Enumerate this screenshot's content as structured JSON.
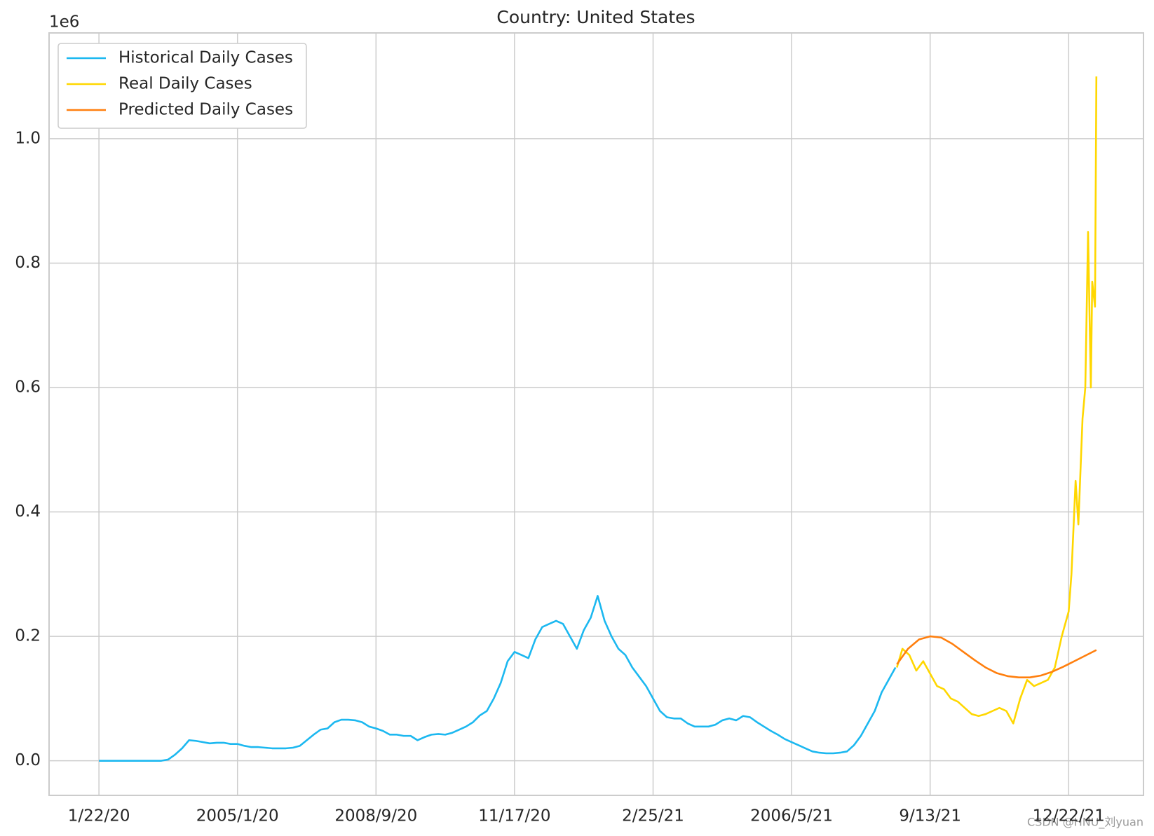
{
  "chart_data": {
    "type": "line",
    "title": "Country: United States",
    "y_multiplier_label": "1e6",
    "watermark": "CSDN @HNU_刘yuan",
    "xlim": [
      -36,
      754
    ],
    "xticks": [
      {
        "value": 0,
        "label": "1/22/20"
      },
      {
        "value": 100,
        "label": "2005/1/20"
      },
      {
        "value": 200,
        "label": "2008/9/20"
      },
      {
        "value": 300,
        "label": "11/17/20"
      },
      {
        "value": 400,
        "label": "2/25/21"
      },
      {
        "value": 500,
        "label": "2006/5/21"
      },
      {
        "value": 600,
        "label": "9/13/21"
      },
      {
        "value": 700,
        "label": "12/22/21"
      }
    ],
    "ylim": [
      -55600,
      1170000
    ],
    "yticks": [
      {
        "value": 0,
        "label": "0.0"
      },
      {
        "value": 200000,
        "label": "0.2"
      },
      {
        "value": 400000,
        "label": "0.4"
      },
      {
        "value": 600000,
        "label": "0.6"
      },
      {
        "value": 800000,
        "label": "0.8"
      },
      {
        "value": 1000000,
        "label": "1.0"
      }
    ],
    "grid": true,
    "legend": "upper left",
    "series": [
      {
        "name": "Historical Daily Cases",
        "color": "#1cb8f0",
        "x": [
          0,
          5,
          10,
          15,
          20,
          25,
          30,
          35,
          40,
          45,
          50,
          55,
          60,
          65,
          70,
          75,
          80,
          85,
          90,
          95,
          100,
          105,
          110,
          115,
          120,
          125,
          130,
          135,
          140,
          145,
          150,
          155,
          160,
          165,
          170,
          175,
          180,
          185,
          190,
          195,
          200,
          205,
          210,
          215,
          220,
          225,
          230,
          235,
          240,
          245,
          250,
          255,
          260,
          265,
          270,
          275,
          280,
          285,
          290,
          295,
          300,
          305,
          310,
          315,
          320,
          325,
          330,
          335,
          340,
          345,
          350,
          355,
          360,
          365,
          370,
          375,
          380,
          385,
          390,
          395,
          400,
          405,
          410,
          415,
          420,
          425,
          430,
          435,
          440,
          445,
          450,
          455,
          460,
          465,
          470,
          475,
          480,
          485,
          490,
          495,
          500,
          505,
          510,
          515,
          520,
          525,
          530,
          535,
          540,
          545,
          550,
          555,
          560,
          565,
          570,
          575
        ],
        "values": [
          0,
          0,
          0,
          0,
          0,
          0,
          0,
          0,
          0,
          0,
          2000,
          10000,
          20000,
          33000,
          32000,
          30000,
          28000,
          29000,
          29000,
          27000,
          27000,
          24000,
          22000,
          22000,
          21000,
          20000,
          20000,
          20000,
          21000,
          24000,
          33000,
          42000,
          50000,
          52000,
          62000,
          66000,
          66000,
          65000,
          62000,
          55000,
          52000,
          48000,
          42000,
          42000,
          40000,
          40000,
          33000,
          38000,
          42000,
          43000,
          42000,
          45000,
          50000,
          55000,
          62000,
          73000,
          80000,
          100000,
          125000,
          160000,
          175000,
          170000,
          165000,
          195000,
          215000,
          220000,
          225000,
          220000,
          200000,
          180000,
          210000,
          230000,
          265000,
          225000,
          200000,
          180000,
          170000,
          150000,
          135000,
          120000,
          100000,
          80000,
          70000,
          68000,
          68000,
          60000,
          55000,
          55000,
          55000,
          58000,
          65000,
          68000,
          65000,
          72000,
          70000,
          62000,
          55000,
          48000,
          42000,
          35000,
          30000,
          25000,
          20000,
          15000,
          13000,
          12000,
          12000,
          13000,
          15000,
          25000,
          40000,
          60000,
          80000,
          110000,
          130000,
          150000
        ]
      },
      {
        "name": "Real Daily Cases",
        "color": "#ffd700",
        "x": [
          576,
          580,
          585,
          590,
          595,
          600,
          605,
          610,
          615,
          620,
          625,
          630,
          635,
          640,
          645,
          650,
          655,
          660,
          665,
          670,
          675,
          680,
          685,
          690,
          695,
          700,
          702,
          705,
          707,
          710,
          712,
          714,
          716,
          717,
          719,
          720
        ],
        "values": [
          150000,
          180000,
          170000,
          145000,
          160000,
          140000,
          120000,
          115000,
          100000,
          95000,
          85000,
          75000,
          72000,
          75000,
          80000,
          85000,
          80000,
          60000,
          100000,
          130000,
          120000,
          125000,
          130000,
          150000,
          200000,
          240000,
          300000,
          450000,
          380000,
          550000,
          600000,
          850000,
          600000,
          770000,
          730000,
          1100000
        ]
      },
      {
        "name": "Predicted Daily Cases",
        "color": "#ff7f0e",
        "x": [
          576,
          584,
          592,
          600,
          608,
          616,
          624,
          632,
          640,
          648,
          656,
          664,
          672,
          680,
          688,
          696,
          704,
          712,
          720
        ],
        "values": [
          155000,
          180000,
          195000,
          200000,
          198000,
          188000,
          175000,
          162000,
          150000,
          141000,
          136000,
          134000,
          134000,
          137000,
          143000,
          151000,
          160000,
          169000,
          178000
        ]
      }
    ]
  }
}
